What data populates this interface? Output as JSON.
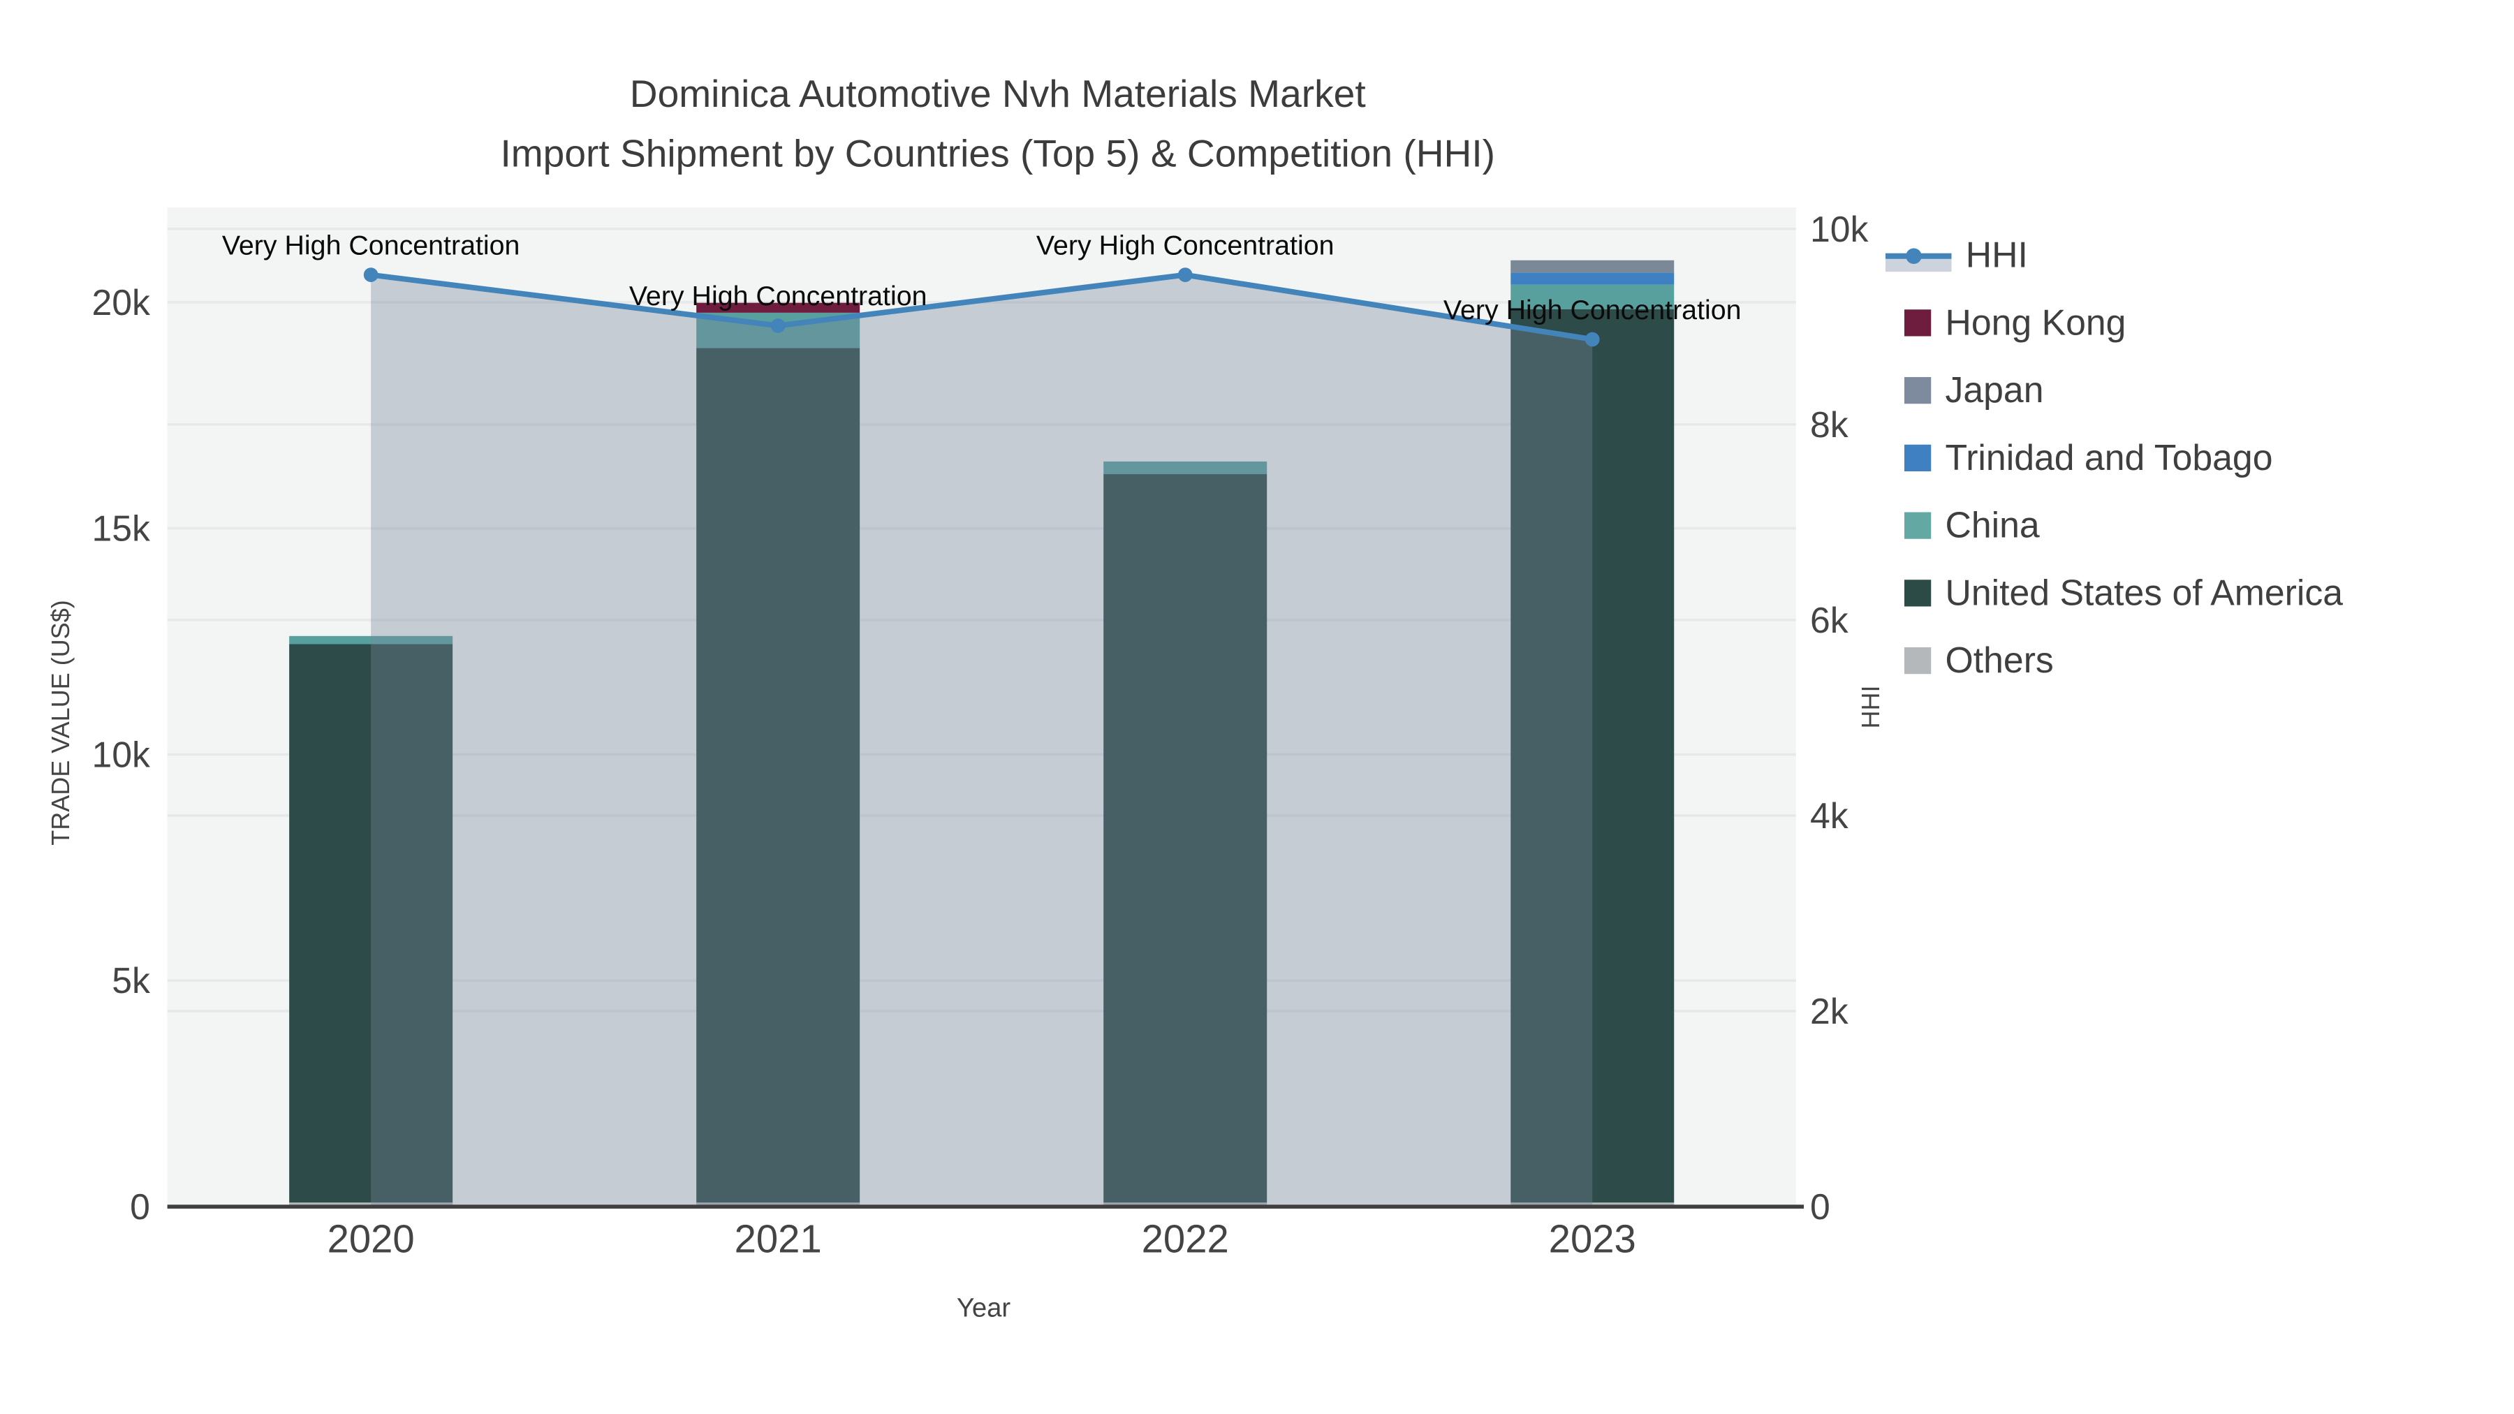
{
  "title": {
    "line1": "Dominica Automotive Nvh Materials Market",
    "line2": "Import Shipment by Countries (Top 5) & Competition (HHI)"
  },
  "axes": {
    "x": {
      "label": "Year",
      "categories": [
        "2020",
        "2021",
        "2022",
        "2023"
      ]
    },
    "y_left": {
      "label": "TRADE VALUE (US$)",
      "ticks": [
        {
          "label": "0",
          "value": 0
        },
        {
          "label": "5k",
          "value": 5000
        },
        {
          "label": "10k",
          "value": 10000
        },
        {
          "label": "15k",
          "value": 15000
        },
        {
          "label": "20k",
          "value": 20000
        }
      ],
      "max": 22100
    },
    "y_right": {
      "label": "HHI",
      "ticks": [
        {
          "label": "0",
          "value": 0
        },
        {
          "label": "2k",
          "value": 2000
        },
        {
          "label": "4k",
          "value": 4000
        },
        {
          "label": "6k",
          "value": 6000
        },
        {
          "label": "8k",
          "value": 8000
        },
        {
          "label": "10k",
          "value": 10000
        }
      ],
      "max": 10220
    }
  },
  "chart_data": {
    "type": "bar+line",
    "title": "Dominica Automotive Nvh Materials Market Import Shipment by Countries (Top 5) & Competition (HHI)",
    "categories": [
      "2020",
      "2021",
      "2022",
      "2023"
    ],
    "xlabel": "Year",
    "ylabel_left": "TRADE VALUE (US$)",
    "ylabel_right": "HHI",
    "ylim_left": [
      0,
      22100
    ],
    "ylim_right": [
      0,
      10220
    ],
    "grid": true,
    "stack_order_bottom_to_top": [
      "Others",
      "United States of America",
      "China",
      "Trinidad and Tobago",
      "Japan",
      "Hong Kong"
    ],
    "bar_series": [
      {
        "name": "Others",
        "color": "#b4b8bb",
        "values": [
          90,
          90,
          90,
          90
        ]
      },
      {
        "name": "United States of America",
        "color": "#2d4b48",
        "values": [
          12350,
          18900,
          16110,
          19760
        ]
      },
      {
        "name": "China",
        "color": "#58a09e",
        "values": [
          180,
          780,
          280,
          540
        ]
      },
      {
        "name": "Trinidad and Tobago",
        "color": "#3e80c1",
        "values": [
          0,
          0,
          0,
          270
        ]
      },
      {
        "name": "Japan",
        "color": "#7b8897",
        "values": [
          0,
          0,
          0,
          270
        ]
      },
      {
        "name": "Hong Kong",
        "color": "#6f1d3e",
        "values": [
          0,
          220,
          0,
          0
        ]
      }
    ],
    "bar_totals": [
      12620,
      19990,
      16480,
      20930
    ],
    "line_series": {
      "name": "HHI",
      "axis": "right",
      "color": "#4384bb",
      "area_fill": "rgba(120,132,154,0.36)",
      "values": [
        9530,
        9010,
        9530,
        8870
      ]
    },
    "annotations": [
      {
        "x": "2020",
        "text": "Very High Concentration"
      },
      {
        "x": "2021",
        "text": "Very High Concentration"
      },
      {
        "x": "2022",
        "text": "Very High Concentration"
      },
      {
        "x": "2023",
        "text": "Very High Concentration"
      }
    ],
    "legend_position": "right"
  },
  "legend": {
    "items": [
      {
        "label": "HHI",
        "type": "line",
        "color": "#4384bb",
        "band_color": "#ccd3dc"
      },
      {
        "label": "Hong Kong",
        "type": "swatch",
        "color": "#6f1d3e"
      },
      {
        "label": "Japan",
        "type": "swatch",
        "color": "#7e8b9e"
      },
      {
        "label": "Trinidad and Tobago",
        "type": "swatch",
        "color": "#3e80c1"
      },
      {
        "label": "China",
        "type": "swatch",
        "color": "#63a8a3"
      },
      {
        "label": "United States of America",
        "type": "swatch",
        "color": "#2c4a46"
      },
      {
        "label": "Others",
        "type": "swatch",
        "color": "#b4b8bb"
      }
    ]
  },
  "style": {
    "plot_bg": "#f3f4f4",
    "gridline": "#e7e8e9",
    "axis_line": "#3f3f3f",
    "tick_text": "#444444",
    "annotation_text": "#0a0a0a"
  }
}
